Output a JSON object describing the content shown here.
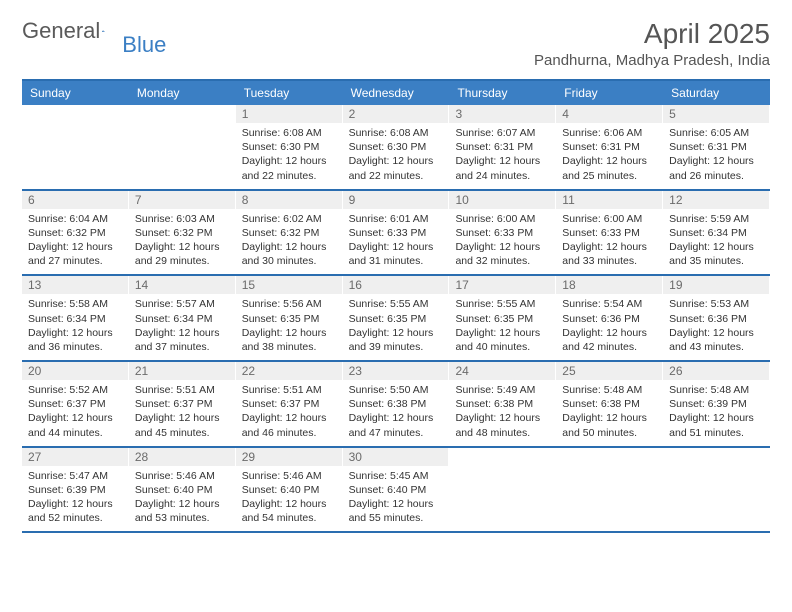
{
  "logo": {
    "text1": "General",
    "text2": "Blue"
  },
  "title": "April 2025",
  "location": "Pandhurna, Madhya Pradesh, India",
  "colors": {
    "header_bg": "#3b7fc4",
    "border": "#2a6db0",
    "daynum_bg": "#efefef",
    "text": "#333333",
    "muted": "#6b6b6b"
  },
  "day_headers": [
    "Sunday",
    "Monday",
    "Tuesday",
    "Wednesday",
    "Thursday",
    "Friday",
    "Saturday"
  ],
  "weeks": [
    [
      null,
      null,
      {
        "n": "1",
        "sr": "Sunrise: 6:08 AM",
        "ss": "Sunset: 6:30 PM",
        "d1": "Daylight: 12 hours",
        "d2": "and 22 minutes."
      },
      {
        "n": "2",
        "sr": "Sunrise: 6:08 AM",
        "ss": "Sunset: 6:30 PM",
        "d1": "Daylight: 12 hours",
        "d2": "and 22 minutes."
      },
      {
        "n": "3",
        "sr": "Sunrise: 6:07 AM",
        "ss": "Sunset: 6:31 PM",
        "d1": "Daylight: 12 hours",
        "d2": "and 24 minutes."
      },
      {
        "n": "4",
        "sr": "Sunrise: 6:06 AM",
        "ss": "Sunset: 6:31 PM",
        "d1": "Daylight: 12 hours",
        "d2": "and 25 minutes."
      },
      {
        "n": "5",
        "sr": "Sunrise: 6:05 AM",
        "ss": "Sunset: 6:31 PM",
        "d1": "Daylight: 12 hours",
        "d2": "and 26 minutes."
      }
    ],
    [
      {
        "n": "6",
        "sr": "Sunrise: 6:04 AM",
        "ss": "Sunset: 6:32 PM",
        "d1": "Daylight: 12 hours",
        "d2": "and 27 minutes."
      },
      {
        "n": "7",
        "sr": "Sunrise: 6:03 AM",
        "ss": "Sunset: 6:32 PM",
        "d1": "Daylight: 12 hours",
        "d2": "and 29 minutes."
      },
      {
        "n": "8",
        "sr": "Sunrise: 6:02 AM",
        "ss": "Sunset: 6:32 PM",
        "d1": "Daylight: 12 hours",
        "d2": "and 30 minutes."
      },
      {
        "n": "9",
        "sr": "Sunrise: 6:01 AM",
        "ss": "Sunset: 6:33 PM",
        "d1": "Daylight: 12 hours",
        "d2": "and 31 minutes."
      },
      {
        "n": "10",
        "sr": "Sunrise: 6:00 AM",
        "ss": "Sunset: 6:33 PM",
        "d1": "Daylight: 12 hours",
        "d2": "and 32 minutes."
      },
      {
        "n": "11",
        "sr": "Sunrise: 6:00 AM",
        "ss": "Sunset: 6:33 PM",
        "d1": "Daylight: 12 hours",
        "d2": "and 33 minutes."
      },
      {
        "n": "12",
        "sr": "Sunrise: 5:59 AM",
        "ss": "Sunset: 6:34 PM",
        "d1": "Daylight: 12 hours",
        "d2": "and 35 minutes."
      }
    ],
    [
      {
        "n": "13",
        "sr": "Sunrise: 5:58 AM",
        "ss": "Sunset: 6:34 PM",
        "d1": "Daylight: 12 hours",
        "d2": "and 36 minutes."
      },
      {
        "n": "14",
        "sr": "Sunrise: 5:57 AM",
        "ss": "Sunset: 6:34 PM",
        "d1": "Daylight: 12 hours",
        "d2": "and 37 minutes."
      },
      {
        "n": "15",
        "sr": "Sunrise: 5:56 AM",
        "ss": "Sunset: 6:35 PM",
        "d1": "Daylight: 12 hours",
        "d2": "and 38 minutes."
      },
      {
        "n": "16",
        "sr": "Sunrise: 5:55 AM",
        "ss": "Sunset: 6:35 PM",
        "d1": "Daylight: 12 hours",
        "d2": "and 39 minutes."
      },
      {
        "n": "17",
        "sr": "Sunrise: 5:55 AM",
        "ss": "Sunset: 6:35 PM",
        "d1": "Daylight: 12 hours",
        "d2": "and 40 minutes."
      },
      {
        "n": "18",
        "sr": "Sunrise: 5:54 AM",
        "ss": "Sunset: 6:36 PM",
        "d1": "Daylight: 12 hours",
        "d2": "and 42 minutes."
      },
      {
        "n": "19",
        "sr": "Sunrise: 5:53 AM",
        "ss": "Sunset: 6:36 PM",
        "d1": "Daylight: 12 hours",
        "d2": "and 43 minutes."
      }
    ],
    [
      {
        "n": "20",
        "sr": "Sunrise: 5:52 AM",
        "ss": "Sunset: 6:37 PM",
        "d1": "Daylight: 12 hours",
        "d2": "and 44 minutes."
      },
      {
        "n": "21",
        "sr": "Sunrise: 5:51 AM",
        "ss": "Sunset: 6:37 PM",
        "d1": "Daylight: 12 hours",
        "d2": "and 45 minutes."
      },
      {
        "n": "22",
        "sr": "Sunrise: 5:51 AM",
        "ss": "Sunset: 6:37 PM",
        "d1": "Daylight: 12 hours",
        "d2": "and 46 minutes."
      },
      {
        "n": "23",
        "sr": "Sunrise: 5:50 AM",
        "ss": "Sunset: 6:38 PM",
        "d1": "Daylight: 12 hours",
        "d2": "and 47 minutes."
      },
      {
        "n": "24",
        "sr": "Sunrise: 5:49 AM",
        "ss": "Sunset: 6:38 PM",
        "d1": "Daylight: 12 hours",
        "d2": "and 48 minutes."
      },
      {
        "n": "25",
        "sr": "Sunrise: 5:48 AM",
        "ss": "Sunset: 6:38 PM",
        "d1": "Daylight: 12 hours",
        "d2": "and 50 minutes."
      },
      {
        "n": "26",
        "sr": "Sunrise: 5:48 AM",
        "ss": "Sunset: 6:39 PM",
        "d1": "Daylight: 12 hours",
        "d2": "and 51 minutes."
      }
    ],
    [
      {
        "n": "27",
        "sr": "Sunrise: 5:47 AM",
        "ss": "Sunset: 6:39 PM",
        "d1": "Daylight: 12 hours",
        "d2": "and 52 minutes."
      },
      {
        "n": "28",
        "sr": "Sunrise: 5:46 AM",
        "ss": "Sunset: 6:40 PM",
        "d1": "Daylight: 12 hours",
        "d2": "and 53 minutes."
      },
      {
        "n": "29",
        "sr": "Sunrise: 5:46 AM",
        "ss": "Sunset: 6:40 PM",
        "d1": "Daylight: 12 hours",
        "d2": "and 54 minutes."
      },
      {
        "n": "30",
        "sr": "Sunrise: 5:45 AM",
        "ss": "Sunset: 6:40 PM",
        "d1": "Daylight: 12 hours",
        "d2": "and 55 minutes."
      },
      null,
      null,
      null
    ]
  ]
}
